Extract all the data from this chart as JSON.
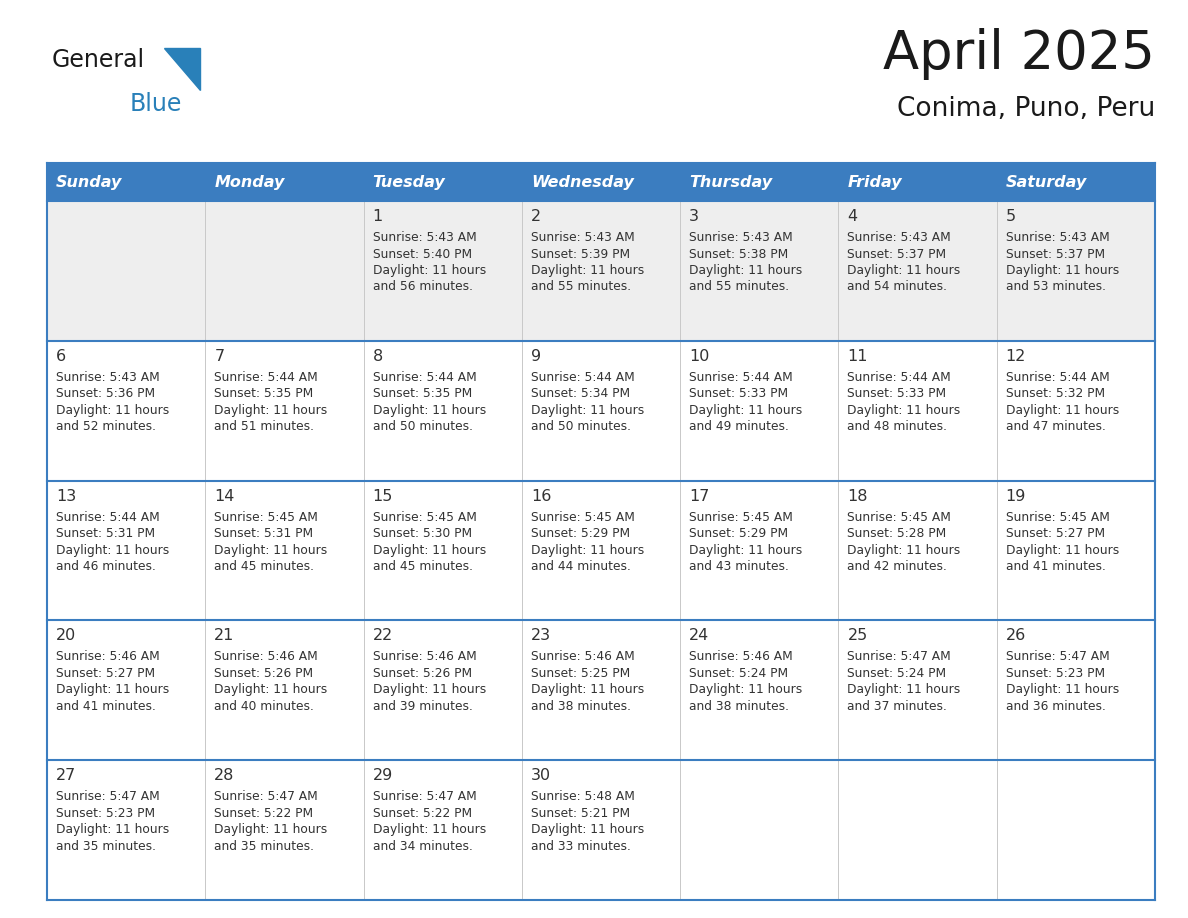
{
  "title": "April 2025",
  "subtitle": "Conima, Puno, Peru",
  "header_color": "#3b7dc0",
  "header_text_color": "#ffffff",
  "row0_bg": "#eeeeee",
  "row_bg": "#ffffff",
  "day_headers": [
    "Sunday",
    "Monday",
    "Tuesday",
    "Wednesday",
    "Thursday",
    "Friday",
    "Saturday"
  ],
  "border_color": "#3b7dc0",
  "text_color": "#333333",
  "days": [
    {
      "day": 1,
      "col": 2,
      "row": 0,
      "sunrise": "5:43 AM",
      "sunset": "5:40 PM",
      "daylight_h": "11 hours",
      "daylight_m": "and 56 minutes."
    },
    {
      "day": 2,
      "col": 3,
      "row": 0,
      "sunrise": "5:43 AM",
      "sunset": "5:39 PM",
      "daylight_h": "11 hours",
      "daylight_m": "and 55 minutes."
    },
    {
      "day": 3,
      "col": 4,
      "row": 0,
      "sunrise": "5:43 AM",
      "sunset": "5:38 PM",
      "daylight_h": "11 hours",
      "daylight_m": "and 55 minutes."
    },
    {
      "day": 4,
      "col": 5,
      "row": 0,
      "sunrise": "5:43 AM",
      "sunset": "5:37 PM",
      "daylight_h": "11 hours",
      "daylight_m": "and 54 minutes."
    },
    {
      "day": 5,
      "col": 6,
      "row": 0,
      "sunrise": "5:43 AM",
      "sunset": "5:37 PM",
      "daylight_h": "11 hours",
      "daylight_m": "and 53 minutes."
    },
    {
      "day": 6,
      "col": 0,
      "row": 1,
      "sunrise": "5:43 AM",
      "sunset": "5:36 PM",
      "daylight_h": "11 hours",
      "daylight_m": "and 52 minutes."
    },
    {
      "day": 7,
      "col": 1,
      "row": 1,
      "sunrise": "5:44 AM",
      "sunset": "5:35 PM",
      "daylight_h": "11 hours",
      "daylight_m": "and 51 minutes."
    },
    {
      "day": 8,
      "col": 2,
      "row": 1,
      "sunrise": "5:44 AM",
      "sunset": "5:35 PM",
      "daylight_h": "11 hours",
      "daylight_m": "and 50 minutes."
    },
    {
      "day": 9,
      "col": 3,
      "row": 1,
      "sunrise": "5:44 AM",
      "sunset": "5:34 PM",
      "daylight_h": "11 hours",
      "daylight_m": "and 50 minutes."
    },
    {
      "day": 10,
      "col": 4,
      "row": 1,
      "sunrise": "5:44 AM",
      "sunset": "5:33 PM",
      "daylight_h": "11 hours",
      "daylight_m": "and 49 minutes."
    },
    {
      "day": 11,
      "col": 5,
      "row": 1,
      "sunrise": "5:44 AM",
      "sunset": "5:33 PM",
      "daylight_h": "11 hours",
      "daylight_m": "and 48 minutes."
    },
    {
      "day": 12,
      "col": 6,
      "row": 1,
      "sunrise": "5:44 AM",
      "sunset": "5:32 PM",
      "daylight_h": "11 hours",
      "daylight_m": "and 47 minutes."
    },
    {
      "day": 13,
      "col": 0,
      "row": 2,
      "sunrise": "5:44 AM",
      "sunset": "5:31 PM",
      "daylight_h": "11 hours",
      "daylight_m": "and 46 minutes."
    },
    {
      "day": 14,
      "col": 1,
      "row": 2,
      "sunrise": "5:45 AM",
      "sunset": "5:31 PM",
      "daylight_h": "11 hours",
      "daylight_m": "and 45 minutes."
    },
    {
      "day": 15,
      "col": 2,
      "row": 2,
      "sunrise": "5:45 AM",
      "sunset": "5:30 PM",
      "daylight_h": "11 hours",
      "daylight_m": "and 45 minutes."
    },
    {
      "day": 16,
      "col": 3,
      "row": 2,
      "sunrise": "5:45 AM",
      "sunset": "5:29 PM",
      "daylight_h": "11 hours",
      "daylight_m": "and 44 minutes."
    },
    {
      "day": 17,
      "col": 4,
      "row": 2,
      "sunrise": "5:45 AM",
      "sunset": "5:29 PM",
      "daylight_h": "11 hours",
      "daylight_m": "and 43 minutes."
    },
    {
      "day": 18,
      "col": 5,
      "row": 2,
      "sunrise": "5:45 AM",
      "sunset": "5:28 PM",
      "daylight_h": "11 hours",
      "daylight_m": "and 42 minutes."
    },
    {
      "day": 19,
      "col": 6,
      "row": 2,
      "sunrise": "5:45 AM",
      "sunset": "5:27 PM",
      "daylight_h": "11 hours",
      "daylight_m": "and 41 minutes."
    },
    {
      "day": 20,
      "col": 0,
      "row": 3,
      "sunrise": "5:46 AM",
      "sunset": "5:27 PM",
      "daylight_h": "11 hours",
      "daylight_m": "and 41 minutes."
    },
    {
      "day": 21,
      "col": 1,
      "row": 3,
      "sunrise": "5:46 AM",
      "sunset": "5:26 PM",
      "daylight_h": "11 hours",
      "daylight_m": "and 40 minutes."
    },
    {
      "day": 22,
      "col": 2,
      "row": 3,
      "sunrise": "5:46 AM",
      "sunset": "5:26 PM",
      "daylight_h": "11 hours",
      "daylight_m": "and 39 minutes."
    },
    {
      "day": 23,
      "col": 3,
      "row": 3,
      "sunrise": "5:46 AM",
      "sunset": "5:25 PM",
      "daylight_h": "11 hours",
      "daylight_m": "and 38 minutes."
    },
    {
      "day": 24,
      "col": 4,
      "row": 3,
      "sunrise": "5:46 AM",
      "sunset": "5:24 PM",
      "daylight_h": "11 hours",
      "daylight_m": "and 38 minutes."
    },
    {
      "day": 25,
      "col": 5,
      "row": 3,
      "sunrise": "5:47 AM",
      "sunset": "5:24 PM",
      "daylight_h": "11 hours",
      "daylight_m": "and 37 minutes."
    },
    {
      "day": 26,
      "col": 6,
      "row": 3,
      "sunrise": "5:47 AM",
      "sunset": "5:23 PM",
      "daylight_h": "11 hours",
      "daylight_m": "and 36 minutes."
    },
    {
      "day": 27,
      "col": 0,
      "row": 4,
      "sunrise": "5:47 AM",
      "sunset": "5:23 PM",
      "daylight_h": "11 hours",
      "daylight_m": "and 35 minutes."
    },
    {
      "day": 28,
      "col": 1,
      "row": 4,
      "sunrise": "5:47 AM",
      "sunset": "5:22 PM",
      "daylight_h": "11 hours",
      "daylight_m": "and 35 minutes."
    },
    {
      "day": 29,
      "col": 2,
      "row": 4,
      "sunrise": "5:47 AM",
      "sunset": "5:22 PM",
      "daylight_h": "11 hours",
      "daylight_m": "and 34 minutes."
    },
    {
      "day": 30,
      "col": 3,
      "row": 4,
      "sunrise": "5:48 AM",
      "sunset": "5:21 PM",
      "daylight_h": "11 hours",
      "daylight_m": "and 33 minutes."
    }
  ],
  "logo_text_general": "General",
  "logo_text_blue": "Blue",
  "logo_color_general": "#1a1a1a",
  "logo_color_blue": "#2980b9",
  "logo_triangle_color": "#2980b9"
}
